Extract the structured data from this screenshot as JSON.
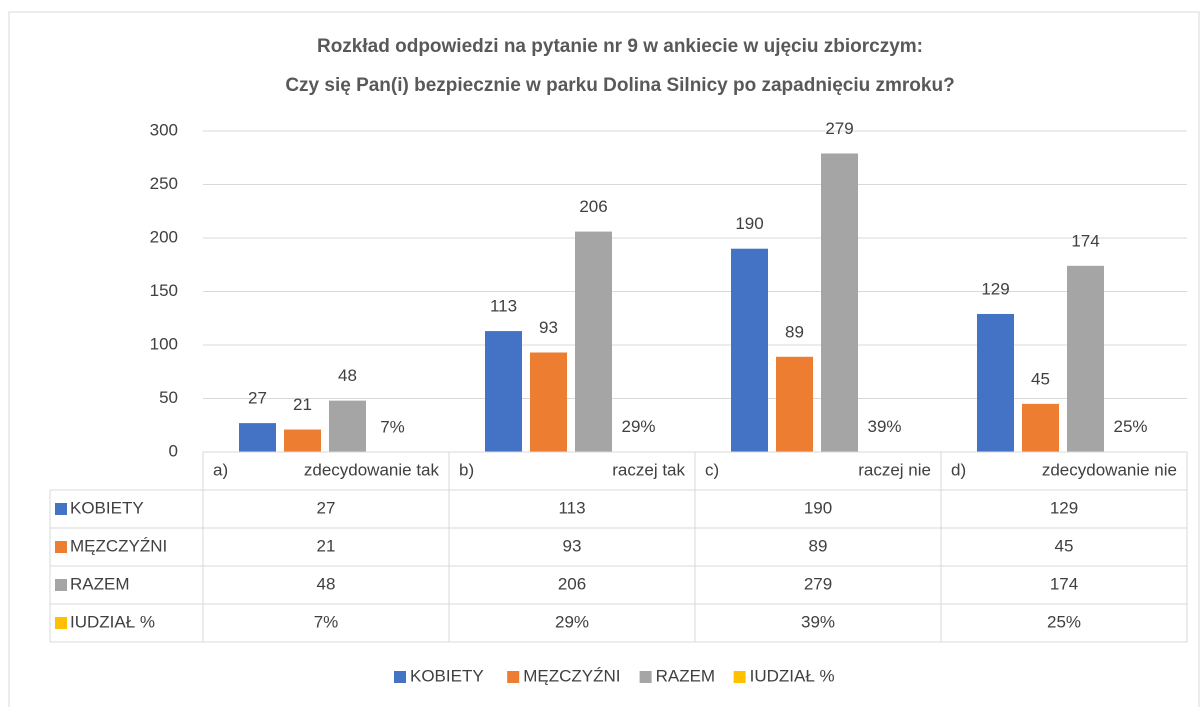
{
  "chart_data": {
    "type": "bar",
    "title": [
      "Rozkład odpowiedzi na pytanie nr 9 w ankiecie w ujęciu zbiorczym:",
      "Czy się Pan(i) bezpiecznie w parku Dolina Silnicy po zapadnięciu zmroku?"
    ],
    "categories": [
      [
        "a)",
        "zdecydowanie tak"
      ],
      [
        "b)",
        "raczej tak"
      ],
      [
        "c)",
        "raczej nie"
      ],
      [
        "d)",
        "zdecydowanie nie"
      ]
    ],
    "series": [
      {
        "name": "KOBIETY",
        "color": "#4472c4",
        "values": [
          27,
          113,
          190,
          129
        ]
      },
      {
        "name": "MĘZCZYŹNI",
        "color": "#ed7d31",
        "values": [
          21,
          93,
          89,
          45
        ]
      },
      {
        "name": "RAZEM",
        "color": "#a5a5a5",
        "values": [
          48,
          206,
          279,
          174
        ]
      },
      {
        "name": "IUDZIAŁ %",
        "color": "#ffc000",
        "values": [
          0.07,
          0.29,
          0.39,
          0.25
        ],
        "value_labels": [
          "7%",
          "29%",
          "39%",
          "25%"
        ]
      }
    ],
    "ylim": [
      0,
      300
    ],
    "yticks": [
      0,
      50,
      100,
      150,
      200,
      250,
      300
    ],
    "grid": true,
    "legend": "bottom",
    "data_table": true
  }
}
